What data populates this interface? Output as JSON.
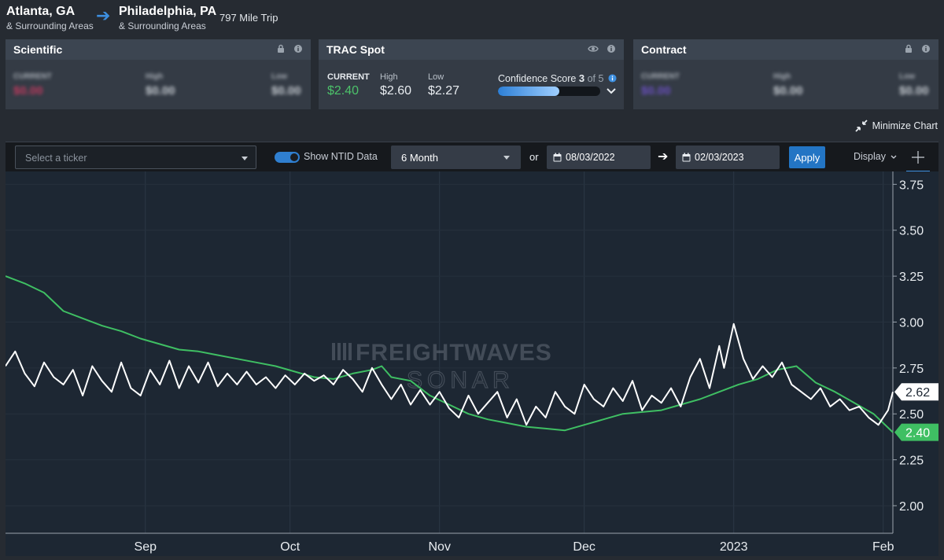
{
  "route": {
    "origin": {
      "city": "Atlanta, GA",
      "area": "& Surrounding Areas"
    },
    "destination": {
      "city": "Philadelphia, PA",
      "area": "& Surrounding Areas"
    },
    "distance": "797 Mile Trip"
  },
  "cards": {
    "scientific": {
      "title": "Scientific",
      "current_label": "CURRENT",
      "current_value": "$0.00",
      "high_label": "High",
      "high_value": "$0.00",
      "low_label": "Low",
      "low_value": "$0.00"
    },
    "trac_spot": {
      "title": "TRAC Spot",
      "current_label": "CURRENT",
      "current_value": "$2.40",
      "high_label": "High",
      "high_value": "$2.60",
      "low_label": "Low",
      "low_value": "$2.27",
      "confidence_label": "Confidence Score",
      "confidence_score": "3",
      "confidence_of": "of 5",
      "confidence_fraction": 0.6
    },
    "contract": {
      "title": "Contract",
      "current_label": "CURRENT",
      "current_value": "$0.00",
      "high_label": "High",
      "high_value": "$0.00",
      "low_label": "Low",
      "low_value": "$0.00"
    }
  },
  "minimize_label": "Minimize Chart",
  "toolbar": {
    "ticker_placeholder": "Select a ticker",
    "show_ntid_label": "Show NTID Data",
    "range_value": "6 Month",
    "or_label": "or",
    "start_date": "08/03/2022",
    "end_date": "02/03/2023",
    "apply_label": "Apply",
    "display_label": "Display"
  },
  "watermark": {
    "line1": "FREIGHTWAVES",
    "line2": "SONAR"
  },
  "colors": {
    "green": "#3fbf63",
    "white": "#ffffff",
    "accent": "#2f7fd0"
  },
  "chart_data": {
    "type": "line",
    "x_ticks": [
      {
        "label": "Sep",
        "date": "2022-09-01"
      },
      {
        "label": "Oct",
        "date": "2022-10-01"
      },
      {
        "label": "Nov",
        "date": "2022-11-01"
      },
      {
        "label": "Dec",
        "date": "2022-12-01"
      },
      {
        "label": "2023",
        "date": "2023-01-01"
      },
      {
        "label": "Feb",
        "date": "2023-02-01"
      }
    ],
    "y_ticks": [
      "2.00",
      "2.25",
      "2.50",
      "2.75",
      "3.00",
      "3.25",
      "3.50",
      "3.75"
    ],
    "ylim": [
      1.85,
      3.82
    ],
    "xlim": [
      "2022-08-03",
      "2023-02-03"
    ],
    "grid": true,
    "series": [
      {
        "color": "#ffffff",
        "end_label": "2.62",
        "points": [
          [
            "2022-08-03",
            2.76
          ],
          [
            "2022-08-05",
            2.84
          ],
          [
            "2022-08-07",
            2.72
          ],
          [
            "2022-08-09",
            2.65
          ],
          [
            "2022-08-11",
            2.78
          ],
          [
            "2022-08-13",
            2.7
          ],
          [
            "2022-08-15",
            2.66
          ],
          [
            "2022-08-17",
            2.74
          ],
          [
            "2022-08-19",
            2.6
          ],
          [
            "2022-08-21",
            2.76
          ],
          [
            "2022-08-23",
            2.68
          ],
          [
            "2022-08-25",
            2.62
          ],
          [
            "2022-08-27",
            2.78
          ],
          [
            "2022-08-29",
            2.64
          ],
          [
            "2022-08-31",
            2.6
          ],
          [
            "2022-09-02",
            2.74
          ],
          [
            "2022-09-04",
            2.66
          ],
          [
            "2022-09-06",
            2.79
          ],
          [
            "2022-09-08",
            2.64
          ],
          [
            "2022-09-10",
            2.76
          ],
          [
            "2022-09-12",
            2.67
          ],
          [
            "2022-09-14",
            2.78
          ],
          [
            "2022-09-16",
            2.65
          ],
          [
            "2022-09-18",
            2.72
          ],
          [
            "2022-09-20",
            2.66
          ],
          [
            "2022-09-22",
            2.73
          ],
          [
            "2022-09-24",
            2.66
          ],
          [
            "2022-09-26",
            2.7
          ],
          [
            "2022-09-28",
            2.64
          ],
          [
            "2022-09-30",
            2.71
          ],
          [
            "2022-10-02",
            2.66
          ],
          [
            "2022-10-04",
            2.72
          ],
          [
            "2022-10-06",
            2.68
          ],
          [
            "2022-10-08",
            2.71
          ],
          [
            "2022-10-10",
            2.66
          ],
          [
            "2022-10-12",
            2.74
          ],
          [
            "2022-10-14",
            2.69
          ],
          [
            "2022-10-16",
            2.62
          ],
          [
            "2022-10-18",
            2.75
          ],
          [
            "2022-10-20",
            2.66
          ],
          [
            "2022-10-22",
            2.58
          ],
          [
            "2022-10-24",
            2.66
          ],
          [
            "2022-10-26",
            2.55
          ],
          [
            "2022-10-28",
            2.63
          ],
          [
            "2022-10-30",
            2.55
          ],
          [
            "2022-11-01",
            2.62
          ],
          [
            "2022-11-03",
            2.53
          ],
          [
            "2022-11-05",
            2.48
          ],
          [
            "2022-11-07",
            2.6
          ],
          [
            "2022-11-09",
            2.5
          ],
          [
            "2022-11-11",
            2.56
          ],
          [
            "2022-11-13",
            2.62
          ],
          [
            "2022-11-15",
            2.48
          ],
          [
            "2022-11-17",
            2.58
          ],
          [
            "2022-11-19",
            2.44
          ],
          [
            "2022-11-21",
            2.54
          ],
          [
            "2022-11-23",
            2.48
          ],
          [
            "2022-11-25",
            2.62
          ],
          [
            "2022-11-27",
            2.54
          ],
          [
            "2022-11-29",
            2.5
          ],
          [
            "2022-12-01",
            2.66
          ],
          [
            "2022-12-03",
            2.58
          ],
          [
            "2022-12-05",
            2.54
          ],
          [
            "2022-12-07",
            2.64
          ],
          [
            "2022-12-09",
            2.57
          ],
          [
            "2022-12-11",
            2.68
          ],
          [
            "2022-12-13",
            2.52
          ],
          [
            "2022-12-15",
            2.6
          ],
          [
            "2022-12-17",
            2.56
          ],
          [
            "2022-12-19",
            2.64
          ],
          [
            "2022-12-21",
            2.54
          ],
          [
            "2022-12-23",
            2.7
          ],
          [
            "2022-12-25",
            2.8
          ],
          [
            "2022-12-27",
            2.64
          ],
          [
            "2022-12-29",
            2.87
          ],
          [
            "2022-12-30",
            2.75
          ],
          [
            "2023-01-01",
            2.99
          ],
          [
            "2023-01-03",
            2.8
          ],
          [
            "2023-01-05",
            2.69
          ],
          [
            "2023-01-07",
            2.76
          ],
          [
            "2023-01-09",
            2.7
          ],
          [
            "2023-01-11",
            2.78
          ],
          [
            "2023-01-13",
            2.66
          ],
          [
            "2023-01-15",
            2.62
          ],
          [
            "2023-01-17",
            2.58
          ],
          [
            "2023-01-19",
            2.64
          ],
          [
            "2023-01-21",
            2.54
          ],
          [
            "2023-01-23",
            2.58
          ],
          [
            "2023-01-25",
            2.52
          ],
          [
            "2023-01-27",
            2.54
          ],
          [
            "2023-01-29",
            2.48
          ],
          [
            "2023-01-31",
            2.44
          ],
          [
            "2023-02-02",
            2.52
          ],
          [
            "2023-02-03",
            2.62
          ]
        ]
      },
      {
        "color": "#3fbf63",
        "end_label": "2.40",
        "points": [
          [
            "2022-08-03",
            3.25
          ],
          [
            "2022-08-07",
            3.21
          ],
          [
            "2022-08-11",
            3.16
          ],
          [
            "2022-08-15",
            3.06
          ],
          [
            "2022-08-19",
            3.02
          ],
          [
            "2022-08-23",
            2.98
          ],
          [
            "2022-08-27",
            2.95
          ],
          [
            "2022-08-31",
            2.91
          ],
          [
            "2022-09-04",
            2.88
          ],
          [
            "2022-09-08",
            2.85
          ],
          [
            "2022-09-12",
            2.84
          ],
          [
            "2022-09-16",
            2.82
          ],
          [
            "2022-09-20",
            2.8
          ],
          [
            "2022-09-24",
            2.78
          ],
          [
            "2022-09-28",
            2.76
          ],
          [
            "2022-10-02",
            2.73
          ],
          [
            "2022-10-06",
            2.7
          ],
          [
            "2022-10-10",
            2.69
          ],
          [
            "2022-10-14",
            2.72
          ],
          [
            "2022-10-18",
            2.74
          ],
          [
            "2022-10-20",
            2.76
          ],
          [
            "2022-10-22",
            2.7
          ],
          [
            "2022-10-26",
            2.68
          ],
          [
            "2022-10-30",
            2.6
          ],
          [
            "2022-11-03",
            2.55
          ],
          [
            "2022-11-07",
            2.5
          ],
          [
            "2022-11-11",
            2.47
          ],
          [
            "2022-11-15",
            2.45
          ],
          [
            "2022-11-19",
            2.43
          ],
          [
            "2022-11-23",
            2.42
          ],
          [
            "2022-11-27",
            2.41
          ],
          [
            "2022-12-01",
            2.44
          ],
          [
            "2022-12-05",
            2.47
          ],
          [
            "2022-12-09",
            2.5
          ],
          [
            "2022-12-13",
            2.51
          ],
          [
            "2022-12-17",
            2.52
          ],
          [
            "2022-12-21",
            2.55
          ],
          [
            "2022-12-25",
            2.58
          ],
          [
            "2022-12-29",
            2.62
          ],
          [
            "2023-01-02",
            2.66
          ],
          [
            "2023-01-06",
            2.69
          ],
          [
            "2023-01-10",
            2.74
          ],
          [
            "2023-01-14",
            2.76
          ],
          [
            "2023-01-18",
            2.67
          ],
          [
            "2023-01-22",
            2.62
          ],
          [
            "2023-01-26",
            2.56
          ],
          [
            "2023-01-30",
            2.5
          ],
          [
            "2023-02-03",
            2.4
          ]
        ]
      }
    ]
  }
}
